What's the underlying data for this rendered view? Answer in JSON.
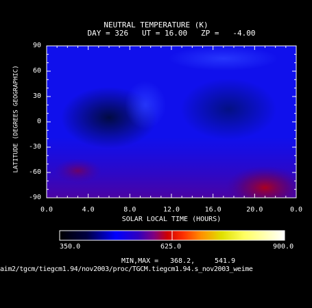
{
  "chart_data": {
    "type": "heatmap",
    "title": "NEUTRAL TEMPERATURE (K)",
    "subtitle": "DAY = 326   UT = 16.00   ZP =   -4.00",
    "xlabel": "SOLAR LOCAL TIME (HOURS)",
    "ylabel": "LATITUDE (DEGREES GEOGRAPHIC)",
    "x_ticks": [
      "0.0",
      "4.0",
      "8.0",
      "12.0",
      "16.0",
      "20.0",
      "0.0"
    ],
    "y_ticks": [
      "90",
      "60",
      "30",
      "0",
      "-30",
      "-60",
      "-90"
    ],
    "xlim": [
      0,
      24
    ],
    "ylim": [
      -90,
      90
    ],
    "colorbar": {
      "min_label": "350.0",
      "mid_label": "625.0",
      "max_label": "900.0",
      "range": [
        350,
        900
      ]
    },
    "minmax_label": "MIN,MAX =",
    "min_value": "368.2,",
    "max_value": "541.9",
    "min": 368.2,
    "max": 541.9,
    "features": [
      {
        "lt": 2.5,
        "lat": -58,
        "value": 470
      },
      {
        "lt": 21.0,
        "lat": -75,
        "value": 541.9
      },
      {
        "lt": 6.0,
        "lat": 10,
        "value": 368.2
      },
      {
        "lt": 9.5,
        "lat": 20,
        "value": 430
      },
      {
        "lt": 17.0,
        "lat": 70,
        "value": 420
      }
    ],
    "source_path": "aim2/tgcm/tiegcm1.94/nov2003/proc/TGCM.tiegcm1.94.s_nov2003_weime"
  }
}
